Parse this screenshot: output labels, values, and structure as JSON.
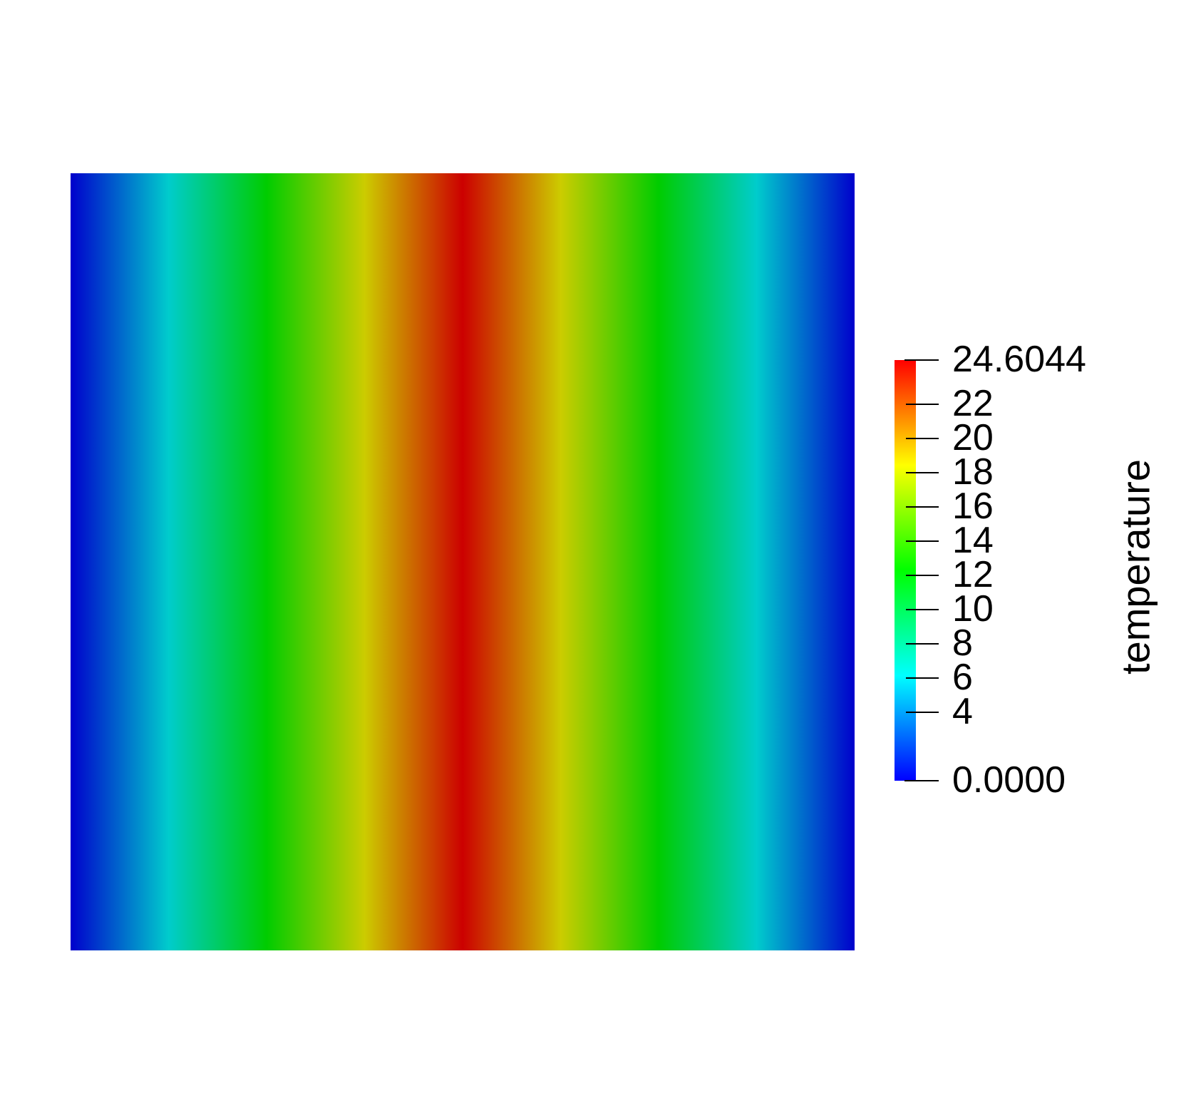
{
  "view": {
    "background_color": "#ffffff"
  },
  "chart_data": {
    "type": "heatmap",
    "field_name": "temperature",
    "description": "2D square domain colored by a temperature scalar field; value is 0 at the left and right edges and peaks at 24.6044 along the vertical centerline, uniform in the vertical direction (rainbow blue-to-red colormap, lit surface).",
    "value_min": 0.0,
    "value_max": 24.6044,
    "x_profile": [
      {
        "x_frac": 0.0,
        "value": 0.0
      },
      {
        "x_frac": 0.125,
        "value": 6.15
      },
      {
        "x_frac": 0.25,
        "value": 12.3
      },
      {
        "x_frac": 0.375,
        "value": 18.45
      },
      {
        "x_frac": 0.5,
        "value": 24.6044
      },
      {
        "x_frac": 0.625,
        "value": 18.45
      },
      {
        "x_frac": 0.75,
        "value": 12.3
      },
      {
        "x_frac": 0.875,
        "value": 6.15
      },
      {
        "x_frac": 1.0,
        "value": 0.0
      }
    ],
    "colormap": {
      "name": "rainbow-blue-to-red",
      "stops": [
        {
          "t": 0.0,
          "color": "#0000ff"
        },
        {
          "t": 0.25,
          "color": "#00ffff"
        },
        {
          "t": 0.5,
          "color": "#00ff00"
        },
        {
          "t": 0.75,
          "color": "#ffff00"
        },
        {
          "t": 1.0,
          "color": "#ff0000"
        }
      ],
      "surface_shade_factor": 0.8,
      "surface_stops": [
        "#0000cc",
        "#00cccc",
        "#00cc00",
        "#cccc00",
        "#cc0000",
        "#cccc00",
        "#00cc00",
        "#00cccc",
        "#0000cc"
      ]
    },
    "colorbar": {
      "title": "temperature",
      "orientation": "vertical",
      "position": "right",
      "max_label": "24.6044",
      "min_label": "0.0000",
      "tick_values": [
        4,
        6,
        8,
        10,
        12,
        14,
        16,
        18,
        20,
        22
      ],
      "tick_color": "#000000",
      "label_color": "#000000"
    }
  }
}
